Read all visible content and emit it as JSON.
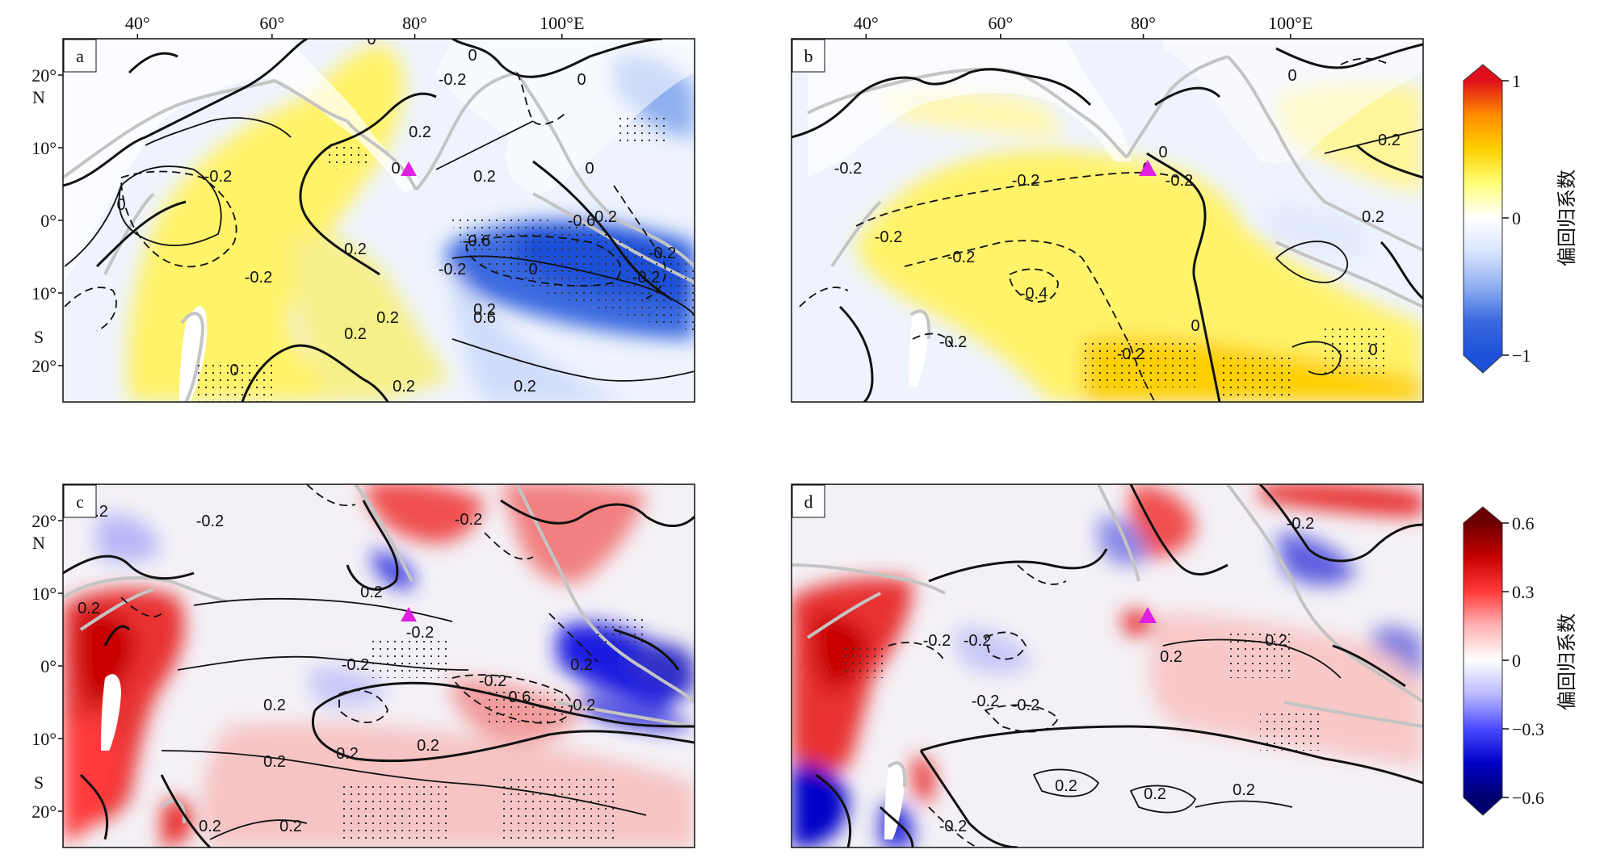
{
  "chart_data": [
    {
      "type": "heatmap",
      "panel": "a",
      "x_ticks": [
        "40°",
        "60°",
        "80°",
        "100°E"
      ],
      "y_ticks": [
        "20°",
        "N",
        "10°",
        "0°",
        "10°",
        "S",
        "20°"
      ],
      "contour_labels": [
        "0",
        "0",
        "0",
        "0",
        "0",
        "0",
        "0",
        "0",
        "-0.2",
        "-0.2",
        "-0.2",
        "0.2",
        "0.2",
        "-0.2",
        "0.2",
        "0.2",
        "-0.2",
        "0.2",
        "-0.6",
        "-0.6",
        "-0.2",
        "0.6",
        "0.2",
        "0.2",
        "0.2",
        "0.2"
      ],
      "marker": "triangle",
      "marker_color": "#e020e0",
      "colorbar": "cb1"
    },
    {
      "type": "heatmap",
      "panel": "b",
      "x_ticks": [
        "40°",
        "60°",
        "80°",
        "100°E"
      ],
      "contour_labels": [
        "-0.2",
        "0",
        "0",
        "0",
        "0.2",
        "-0.2",
        "-0.2",
        "-0.2",
        "-0.4",
        "-0.2",
        "0.2",
        "-0.2",
        "0",
        "-0.2",
        "0"
      ],
      "marker": "triangle",
      "marker_color": "#e020e0",
      "colorbar": "cb1"
    },
    {
      "type": "heatmap",
      "panel": "c",
      "y_ticks": [
        "20°",
        "N",
        "10°",
        "0°",
        "10°",
        "S",
        "20°"
      ],
      "contour_labels": [
        "-0.2",
        "0.2",
        "0.2",
        "-0.2",
        "0.2",
        "-0.2",
        "-0.2",
        "0.2",
        "-0.2",
        "-0.6",
        "-0.2",
        "0.2",
        "0.2",
        "0.2",
        "0.2",
        "0.2",
        "0.2"
      ],
      "marker": "triangle",
      "marker_color": "#e020e0",
      "colorbar": "cb2"
    },
    {
      "type": "heatmap",
      "panel": "d",
      "contour_labels": [
        "-0.2",
        "0.2",
        "-0.2",
        "-0.2",
        "-0.2",
        "-0.2",
        "0.2",
        "0.2",
        "0.2",
        "0.2",
        "-0.2"
      ],
      "marker": "triangle",
      "marker_color": "#e020e0",
      "colorbar": "cb2"
    }
  ],
  "colorbars": {
    "cb1": {
      "ticks": [
        "1",
        "0",
        "−1"
      ],
      "title": "偏回归系数",
      "colors": [
        "#e0101c",
        "#ff8c00",
        "#ffd000",
        "#ffff7a",
        "#ffffff",
        "#d8e4ff",
        "#8fb0f0",
        "#3a6ae0",
        "#1e50d8"
      ]
    },
    "cb2": {
      "ticks": [
        "0.6",
        "0.3",
        "0",
        "−0.3",
        "−0.6"
      ],
      "title": "偏回归系数",
      "colors": [
        "#6e0000",
        "#c80000",
        "#ff3a3a",
        "#ffb4b4",
        "#ffffff",
        "#b9b9ff",
        "#4a4aff",
        "#0000c8",
        "#00006e"
      ]
    }
  }
}
